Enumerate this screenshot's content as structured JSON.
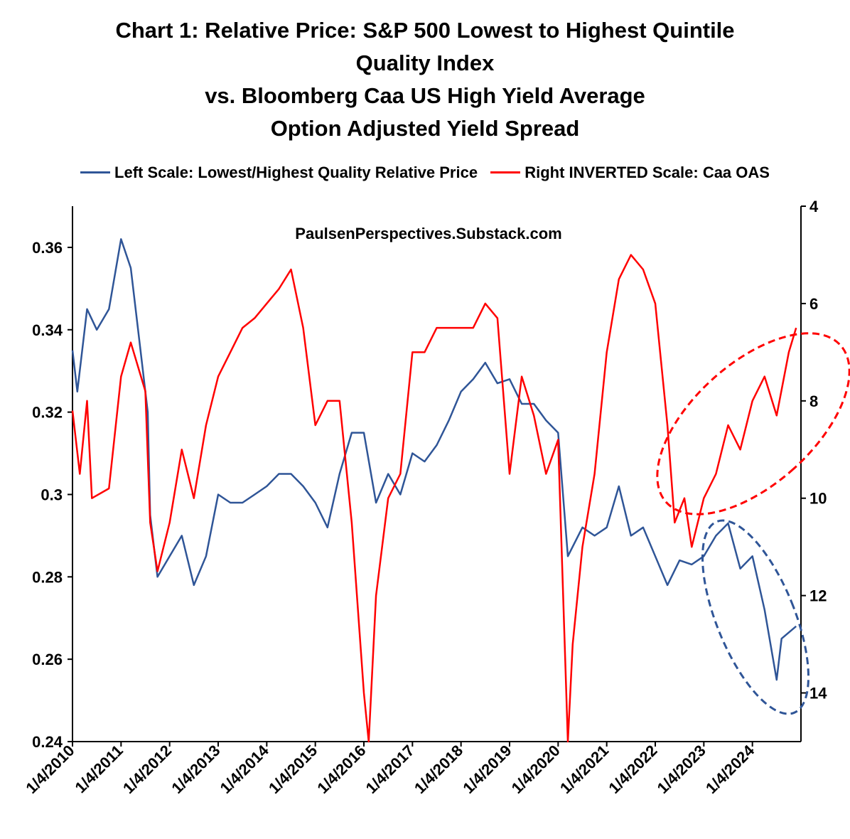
{
  "chart_data": {
    "type": "line",
    "title": [
      "Chart 1: Relative Price: S&P 500 Lowest to Highest Quintile",
      "Quality Index",
      "vs. Bloomberg Caa US High Yield Average",
      "Option Adjusted Yield Spread"
    ],
    "watermark": "PaulsenPerspectives.Substack.com",
    "legend_position": "top",
    "x_range": [
      2010.0,
      2025.0
    ],
    "x_tick_labels": [
      "1/4/2010",
      "1/4/2011",
      "1/4/2012",
      "1/4/2013",
      "1/4/2014",
      "1/4/2015",
      "1/4/2016",
      "1/4/2017",
      "1/4/2018",
      "1/4/2019",
      "1/4/2020",
      "1/4/2021",
      "1/4/2022",
      "1/4/2023",
      "1/4/2024"
    ],
    "y_left": {
      "range": [
        0.24,
        0.37
      ],
      "ticks": [
        "0.24",
        "0.26",
        "0.28",
        "0.3",
        "0.32",
        "0.34",
        "0.36"
      ]
    },
    "y_right": {
      "range": [
        4,
        15
      ],
      "inverted": true,
      "ticks": [
        "4",
        "6",
        "8",
        "10",
        "12",
        "14"
      ]
    },
    "series": [
      {
        "name": "Left Scale: Lowest/Highest Quality Relative Price",
        "axis": "left",
        "color": "#2F5597",
        "x": [
          2010.0,
          2010.1,
          2010.3,
          2010.5,
          2010.75,
          2011.0,
          2011.2,
          2011.4,
          2011.55,
          2011.6,
          2011.75,
          2012.0,
          2012.25,
          2012.5,
          2012.75,
          2013.0,
          2013.25,
          2013.5,
          2013.75,
          2014.0,
          2014.25,
          2014.5,
          2014.75,
          2015.0,
          2015.25,
          2015.5,
          2015.75,
          2016.0,
          2016.25,
          2016.5,
          2016.75,
          2017.0,
          2017.25,
          2017.5,
          2017.75,
          2018.0,
          2018.25,
          2018.5,
          2018.75,
          2019.0,
          2019.25,
          2019.5,
          2019.75,
          2020.0,
          2020.2,
          2020.5,
          2020.75,
          2021.0,
          2021.25,
          2021.5,
          2021.75,
          2022.0,
          2022.25,
          2022.5,
          2022.75,
          2023.0,
          2023.25,
          2023.5,
          2023.75,
          2024.0,
          2024.25,
          2024.5,
          2024.6,
          2024.9
        ],
        "values": [
          0.335,
          0.325,
          0.345,
          0.34,
          0.345,
          0.362,
          0.355,
          0.335,
          0.32,
          0.295,
          0.28,
          0.285,
          0.29,
          0.278,
          0.285,
          0.3,
          0.298,
          0.298,
          0.3,
          0.302,
          0.305,
          0.305,
          0.302,
          0.298,
          0.292,
          0.305,
          0.315,
          0.315,
          0.298,
          0.305,
          0.3,
          0.31,
          0.308,
          0.312,
          0.318,
          0.325,
          0.328,
          0.332,
          0.327,
          0.328,
          0.322,
          0.322,
          0.318,
          0.315,
          0.285,
          0.292,
          0.29,
          0.292,
          0.302,
          0.29,
          0.292,
          0.285,
          0.278,
          0.284,
          0.283,
          0.285,
          0.29,
          0.293,
          0.282,
          0.285,
          0.272,
          0.255,
          0.265,
          0.268
        ]
      },
      {
        "name": "Right INVERTED Scale: Caa OAS",
        "axis": "right",
        "color": "#FF0000",
        "x": [
          2010.0,
          2010.15,
          2010.3,
          2010.4,
          2010.75,
          2011.0,
          2011.2,
          2011.5,
          2011.6,
          2011.75,
          2012.0,
          2012.25,
          2012.5,
          2012.75,
          2013.0,
          2013.25,
          2013.5,
          2013.75,
          2014.0,
          2014.25,
          2014.5,
          2014.75,
          2015.0,
          2015.25,
          2015.5,
          2015.75,
          2016.0,
          2016.1,
          2016.25,
          2016.5,
          2016.75,
          2017.0,
          2017.25,
          2017.5,
          2017.75,
          2018.0,
          2018.25,
          2018.5,
          2018.75,
          2019.0,
          2019.25,
          2019.5,
          2019.75,
          2020.0,
          2020.2,
          2020.3,
          2020.5,
          2020.75,
          2021.0,
          2021.25,
          2021.5,
          2021.75,
          2022.0,
          2022.25,
          2022.4,
          2022.6,
          2022.75,
          2023.0,
          2023.25,
          2023.5,
          2023.75,
          2024.0,
          2024.25,
          2024.5,
          2024.75,
          2024.9
        ],
        "values": [
          8.2,
          9.5,
          8.0,
          10,
          9.8,
          7.5,
          6.8,
          7.8,
          10.5,
          11.5,
          10.5,
          9.0,
          10,
          8.5,
          7.5,
          7.0,
          6.5,
          6.3,
          6.0,
          5.7,
          5.3,
          6.5,
          8.5,
          8.0,
          8.0,
          10.5,
          14.0,
          15,
          12,
          10,
          9.5,
          7.0,
          7.0,
          6.5,
          6.5,
          6.5,
          6.5,
          6.0,
          6.3,
          9.5,
          7.5,
          8.3,
          9.5,
          8.8,
          15,
          13,
          11,
          9.5,
          7.0,
          5.5,
          5.0,
          5.3,
          6.0,
          8.5,
          10.5,
          10,
          11.0,
          10,
          9.5,
          8.5,
          9.0,
          8.0,
          7.5,
          8.3,
          7.0,
          6.5
        ]
      }
    ]
  }
}
